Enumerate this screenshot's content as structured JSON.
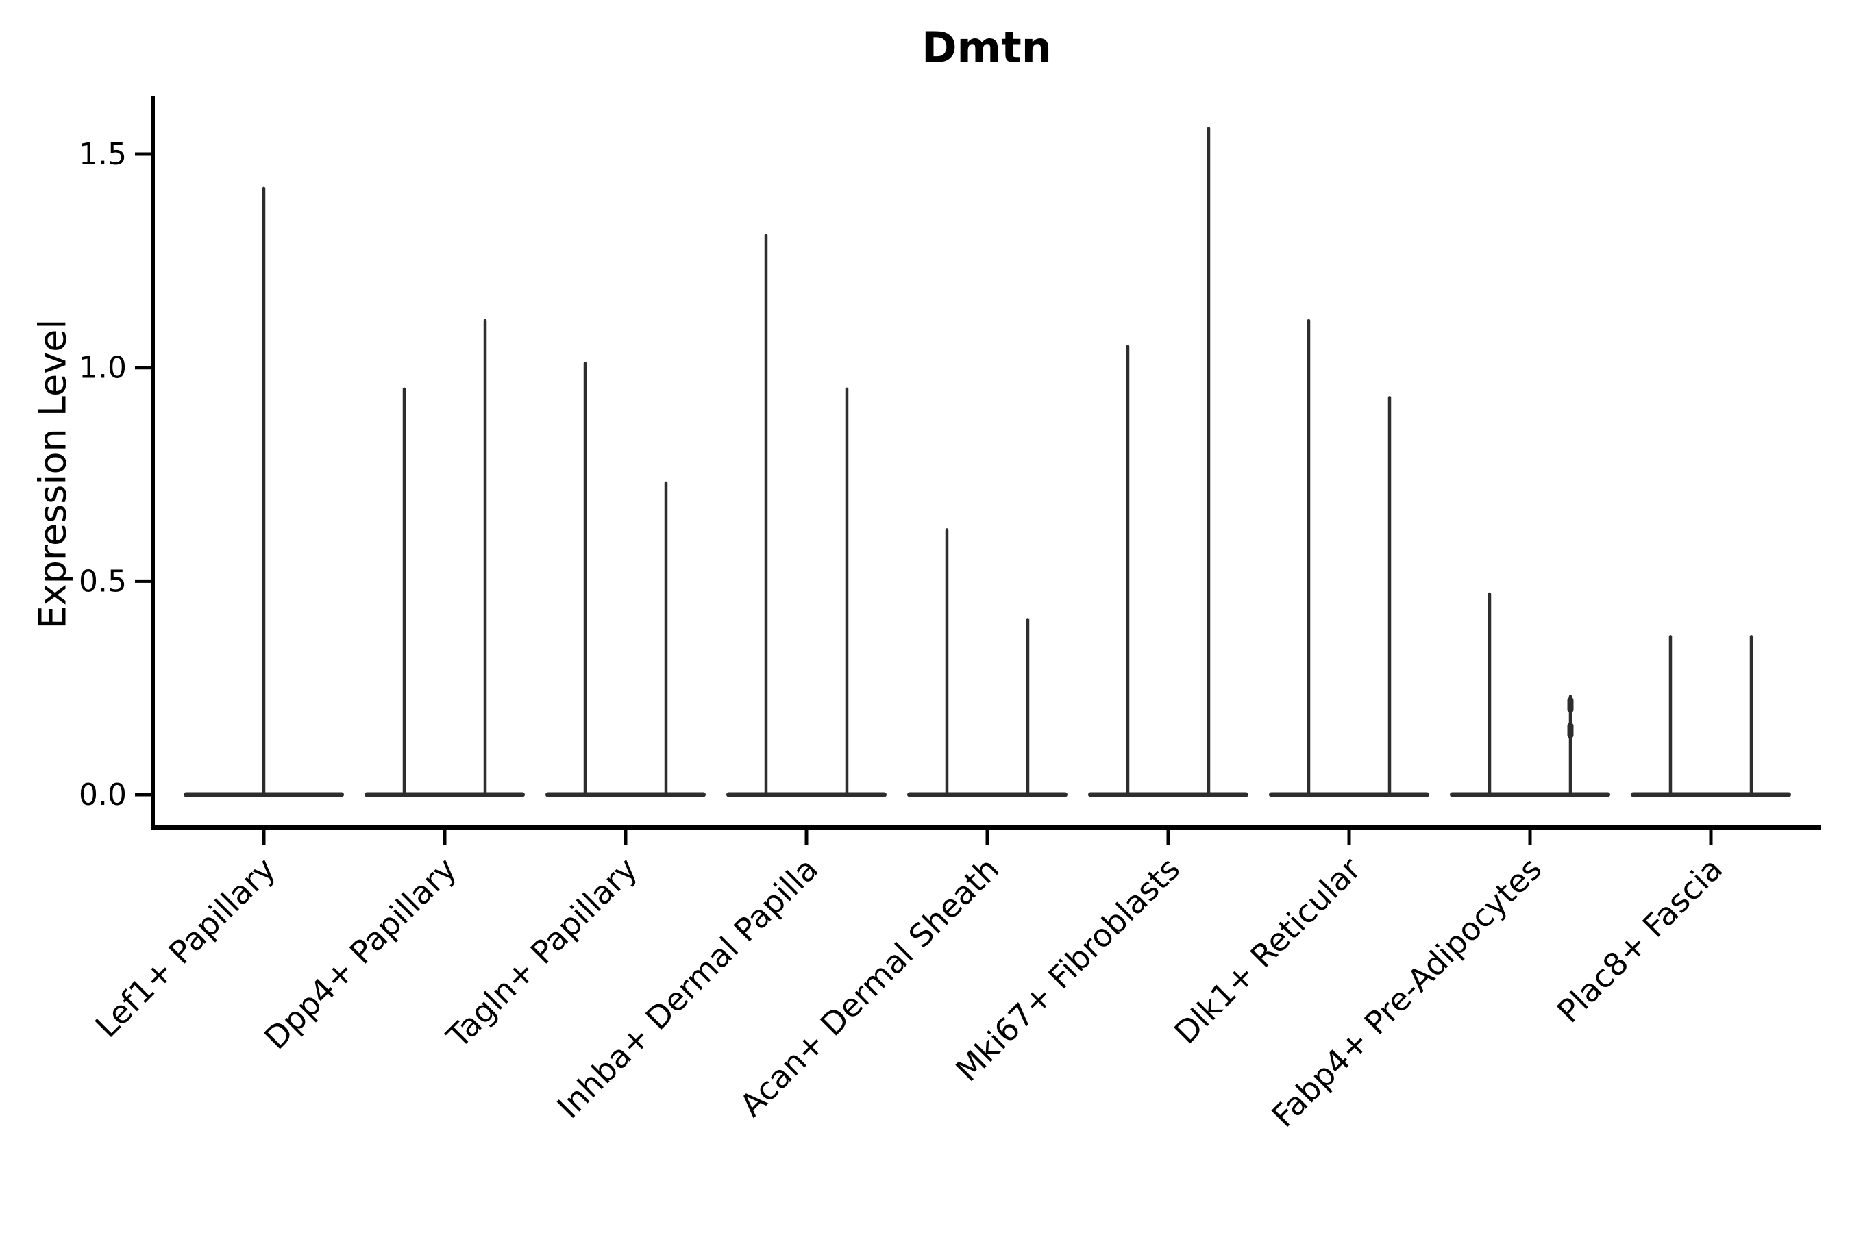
{
  "chart_data": {
    "type": "violin",
    "title": "Dmtn",
    "ylabel": "Expression Level",
    "xlabel": "",
    "yticks": [
      0.0,
      0.5,
      1.0,
      1.5
    ],
    "ytick_labels": [
      "0.0",
      "0.5",
      "1.0",
      "1.5"
    ],
    "ylim": [
      -0.08,
      1.64
    ],
    "grid": false,
    "legend": "none",
    "categories": [
      "Lef1+ Papillary",
      "Dpp4+ Papillary",
      "Tagln+ Papillary",
      "Inhba+ Dermal Papilla",
      "Acan+ Dermal Sheath",
      "Mki67+ Fibroblasts",
      "Dlk1+ Reticular",
      "Fabp4+ Pre-Adipocytes",
      "Plac8+ Fascia"
    ],
    "violins": [
      {
        "category": "Lef1+ Papillary",
        "maxima": [
          1.42
        ]
      },
      {
        "category": "Dpp4+ Papillary",
        "maxima": [
          0.95,
          1.11
        ]
      },
      {
        "category": "Tagln+ Papillary",
        "maxima": [
          1.01,
          0.73
        ]
      },
      {
        "category": "Inhba+ Dermal Papilla",
        "maxima": [
          1.31,
          0.95
        ]
      },
      {
        "category": "Acan+ Dermal Sheath",
        "maxima": [
          0.62,
          0.41
        ]
      },
      {
        "category": "Mki67+ Fibroblasts",
        "maxima": [
          1.05,
          1.56
        ]
      },
      {
        "category": "Dlk1+ Reticular",
        "maxima": [
          1.11,
          0.93
        ]
      },
      {
        "category": "Fabp4+ Pre-Adipocytes",
        "maxima": [
          0.47,
          0.23
        ],
        "knobs": {
          "violin_index": 1,
          "values": [
            0.21,
            0.15
          ]
        }
      },
      {
        "category": "Plac8+ Fascia",
        "maxima": [
          0.37,
          0.37
        ]
      }
    ],
    "style": {
      "violin_color": "#2d2d2d",
      "axis_color": "#000000",
      "background": "#ffffff",
      "shape_note": "each violin renders as a wide flat bar at 0 expression with a thin vertical spike up to its maximum"
    }
  }
}
